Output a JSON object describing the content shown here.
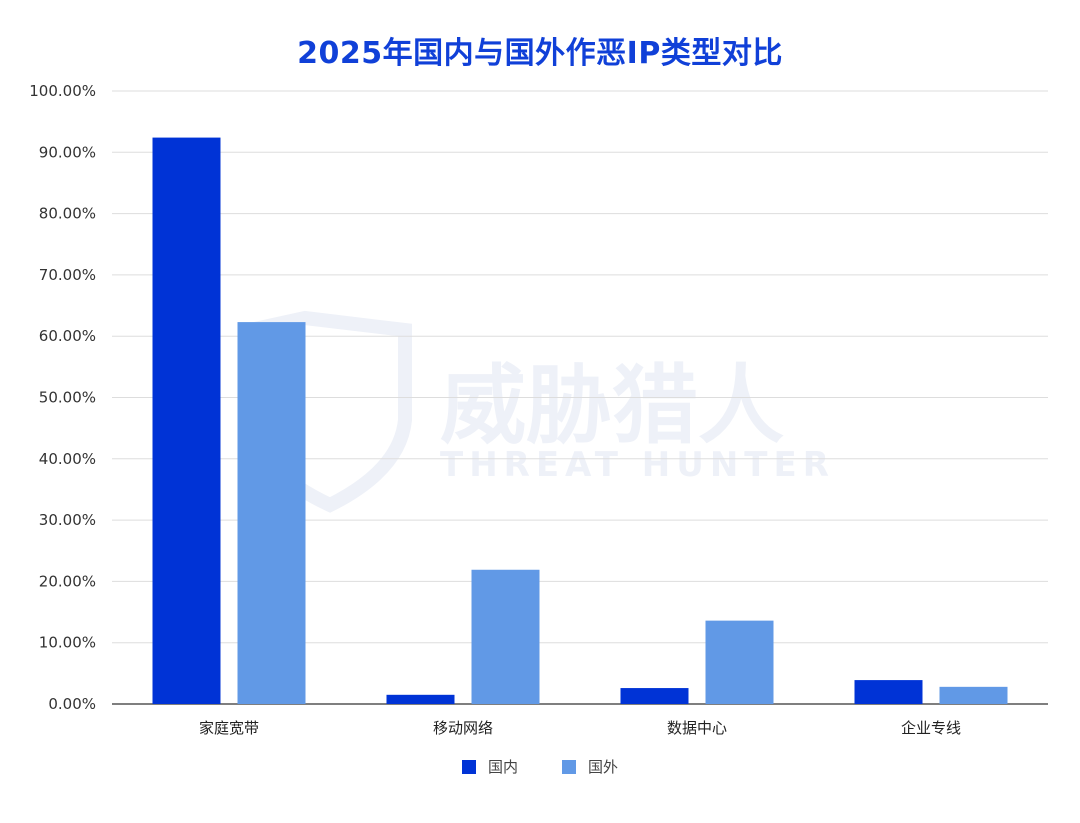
{
  "chart_data": {
    "type": "bar",
    "title": "2025年国内与国外作恶IP类型对比",
    "categories": [
      "家庭宽带",
      "移动网络",
      "数据中心",
      "企业专线"
    ],
    "series": [
      {
        "name": "国内",
        "values": [
          92.4,
          1.5,
          2.6,
          3.9
        ],
        "color": "#0033d6"
      },
      {
        "name": "国外",
        "values": [
          62.3,
          21.9,
          13.6,
          2.8
        ],
        "color": "#6199e6"
      }
    ],
    "yticks": [
      "0.00%",
      "10.00%",
      "20.00%",
      "30.00%",
      "40.00%",
      "50.00%",
      "60.00%",
      "70.00%",
      "80.00%",
      "90.00%",
      "100.00%"
    ],
    "ylim": [
      0,
      100
    ],
    "grid": true,
    "legend_position": "bottom-center"
  },
  "watermark": {
    "main": "威胁猎人",
    "sub": "THREAT HUNTER"
  }
}
